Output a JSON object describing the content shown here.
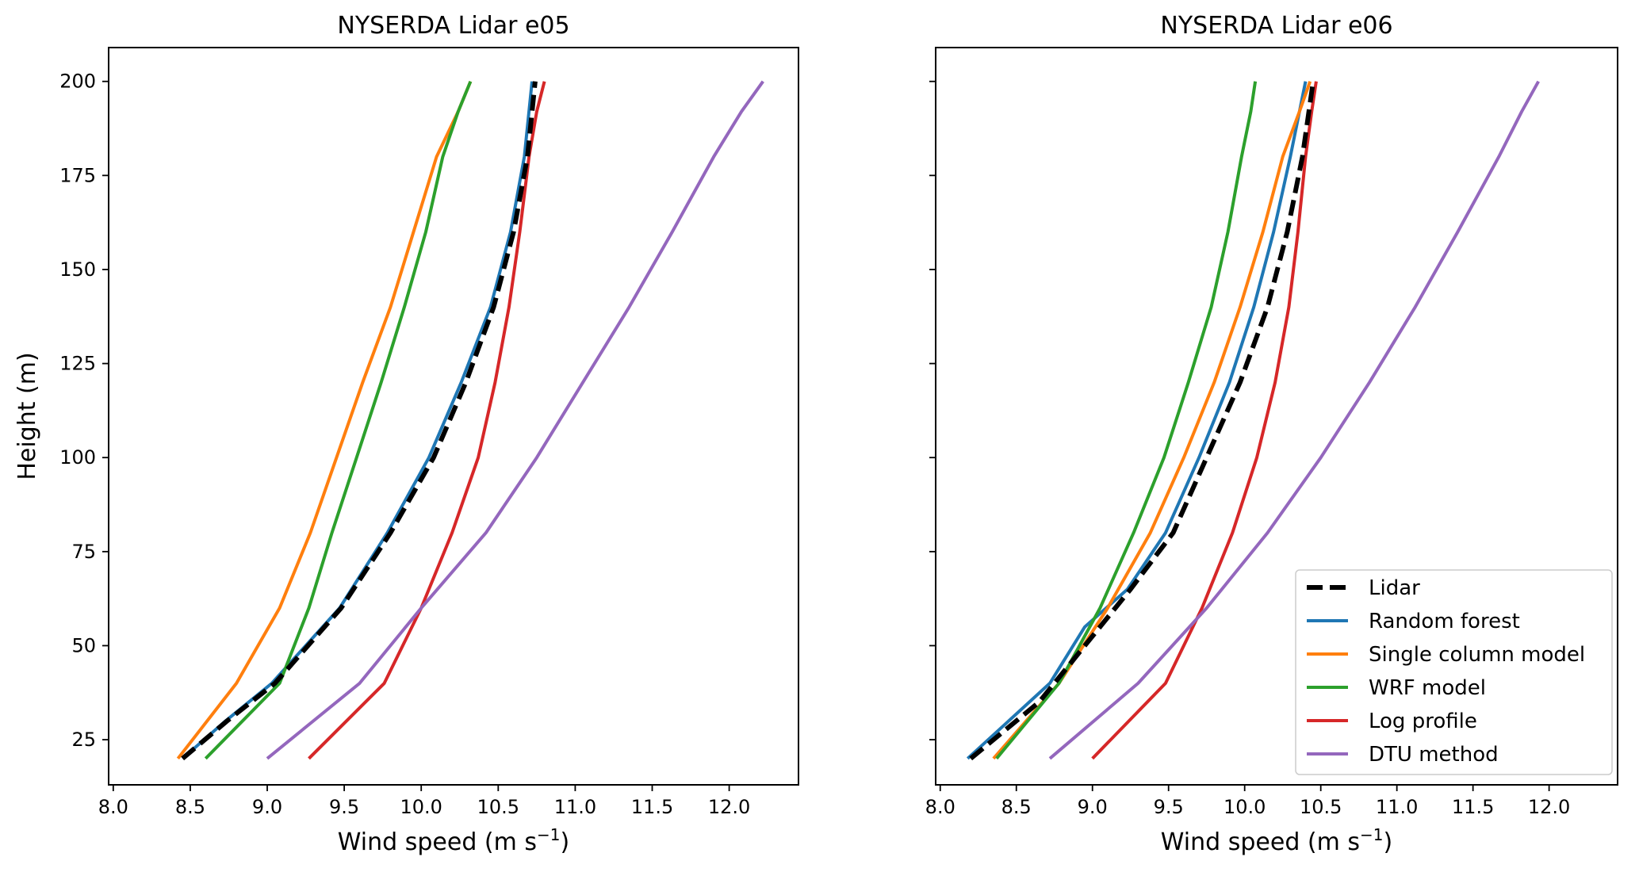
{
  "chart_data": [
    {
      "type": "line",
      "title": "NYSERDA Lidar e05",
      "xlabel": "Wind speed (m s",
      "xlabel_sup": "−1",
      "xlabel_close": ")",
      "ylabel": "Height (m)",
      "xlim": [
        7.97,
        12.45
      ],
      "ylim": [
        13,
        209
      ],
      "xticks": [
        8.0,
        8.5,
        9.0,
        9.5,
        10.0,
        10.5,
        11.0,
        11.5,
        12.0
      ],
      "xtick_labels": [
        "8.0",
        "8.5",
        "9.0",
        "9.5",
        "10.0",
        "10.5",
        "11.0",
        "11.5",
        "12.0"
      ],
      "yticks": [
        25,
        50,
        75,
        100,
        125,
        150,
        175,
        200
      ],
      "ytick_labels": [
        "25",
        "50",
        "75",
        "100",
        "125",
        "150",
        "175",
        "200"
      ],
      "series": [
        {
          "name": "Random forest",
          "color": "#1f77b4",
          "dash": "solid",
          "x": [
            8.45,
            8.73,
            9.03,
            9.47,
            9.78,
            10.05,
            10.26,
            10.45,
            10.58,
            10.67,
            10.72
          ],
          "y": [
            20,
            30,
            40,
            60,
            80,
            100,
            120,
            140,
            160,
            180,
            200
          ]
        },
        {
          "name": "Single column model",
          "color": "#ff7f0e",
          "dash": "solid",
          "x": [
            8.42,
            8.8,
            9.08,
            9.28,
            9.45,
            9.62,
            9.8,
            9.95,
            10.1,
            10.24,
            10.32
          ],
          "y": [
            20,
            40,
            60,
            80,
            100,
            120,
            140,
            160,
            180,
            192,
            200
          ]
        },
        {
          "name": "WRF model",
          "color": "#2ca02c",
          "dash": "solid",
          "x": [
            8.6,
            9.08,
            9.27,
            9.42,
            9.58,
            9.74,
            9.89,
            10.03,
            10.14,
            10.24,
            10.32
          ],
          "y": [
            20,
            40,
            60,
            80,
            100,
            120,
            140,
            160,
            180,
            192,
            200
          ]
        },
        {
          "name": "Log profile",
          "color": "#d62728",
          "dash": "solid",
          "x": [
            9.27,
            9.76,
            10.0,
            10.2,
            10.37,
            10.48,
            10.57,
            10.64,
            10.7,
            10.75,
            10.8
          ],
          "y": [
            20,
            40,
            60,
            80,
            100,
            120,
            140,
            160,
            180,
            192,
            200
          ]
        },
        {
          "name": "DTU method",
          "color": "#9467bd",
          "dash": "solid",
          "x": [
            9.0,
            9.6,
            10.0,
            10.42,
            10.75,
            11.05,
            11.35,
            11.63,
            11.9,
            12.08,
            12.22
          ],
          "y": [
            20,
            40,
            60,
            80,
            100,
            120,
            140,
            160,
            180,
            192,
            200
          ]
        },
        {
          "name": "Lidar",
          "color": "#000000",
          "dash": "dashed",
          "x": [
            8.45,
            8.74,
            9.05,
            9.48,
            9.8,
            10.08,
            10.29,
            10.47,
            10.6,
            10.69,
            10.74
          ],
          "y": [
            20,
            30,
            40,
            60,
            80,
            100,
            120,
            140,
            160,
            180,
            200
          ]
        }
      ]
    },
    {
      "type": "line",
      "title": "NYSERDA Lidar e06",
      "xlabel": "Wind speed (m s",
      "xlabel_sup": "−1",
      "xlabel_close": ")",
      "ylabel": "",
      "xlim": [
        7.97,
        12.45
      ],
      "ylim": [
        13,
        209
      ],
      "xticks": [
        8.0,
        8.5,
        9.0,
        9.5,
        10.0,
        10.5,
        11.0,
        11.5,
        12.0
      ],
      "xtick_labels": [
        "8.0",
        "8.5",
        "9.0",
        "9.5",
        "10.0",
        "10.5",
        "11.0",
        "11.5",
        "12.0"
      ],
      "yticks": [
        25,
        50,
        75,
        100,
        125,
        150,
        175,
        200
      ],
      "ytick_labels": [
        "",
        "",
        "",
        "",
        "",
        "",
        "",
        ""
      ],
      "series": [
        {
          "name": "Random forest",
          "color": "#1f77b4",
          "dash": "solid",
          "x": [
            8.18,
            8.72,
            8.95,
            9.23,
            9.48,
            9.7,
            9.9,
            10.06,
            10.19,
            10.3,
            10.4
          ],
          "y": [
            20,
            40,
            55,
            65,
            80,
            100,
            120,
            140,
            160,
            180,
            200
          ]
        },
        {
          "name": "Single column model",
          "color": "#ff7f0e",
          "dash": "solid",
          "x": [
            8.35,
            8.78,
            9.1,
            9.38,
            9.6,
            9.8,
            9.97,
            10.12,
            10.25,
            10.36,
            10.43
          ],
          "y": [
            20,
            40,
            60,
            80,
            100,
            120,
            140,
            160,
            180,
            192,
            200
          ]
        },
        {
          "name": "WRF model",
          "color": "#2ca02c",
          "dash": "solid",
          "x": [
            8.37,
            8.78,
            9.05,
            9.27,
            9.47,
            9.63,
            9.78,
            9.89,
            9.98,
            10.04,
            10.07
          ],
          "y": [
            20,
            40,
            60,
            80,
            100,
            120,
            140,
            160,
            180,
            192,
            200
          ]
        },
        {
          "name": "Log profile",
          "color": "#d62728",
          "dash": "solid",
          "x": [
            9.0,
            9.48,
            9.72,
            9.92,
            10.08,
            10.2,
            10.29,
            10.35,
            10.4,
            10.44,
            10.47
          ],
          "y": [
            20,
            40,
            60,
            80,
            100,
            120,
            140,
            160,
            180,
            192,
            200
          ]
        },
        {
          "name": "DTU method",
          "color": "#9467bd",
          "dash": "solid",
          "x": [
            8.72,
            9.3,
            9.75,
            10.15,
            10.5,
            10.82,
            11.12,
            11.4,
            11.67,
            11.82,
            11.93
          ],
          "y": [
            20,
            40,
            60,
            80,
            100,
            120,
            140,
            160,
            180,
            192,
            200
          ]
        },
        {
          "name": "Lidar",
          "color": "#000000",
          "dash": "dashed",
          "x": [
            8.2,
            8.65,
            8.95,
            9.25,
            9.53,
            9.75,
            9.97,
            10.15,
            10.28,
            10.38,
            10.45
          ],
          "y": [
            20,
            35,
            50,
            65,
            80,
            100,
            120,
            140,
            160,
            180,
            200
          ]
        }
      ]
    }
  ],
  "legend": {
    "placement": "lower-right",
    "entries": [
      {
        "label": "Lidar",
        "color": "#000000",
        "dash": "dashed"
      },
      {
        "label": "Random forest",
        "color": "#1f77b4",
        "dash": "solid"
      },
      {
        "label": "Single column model",
        "color": "#ff7f0e",
        "dash": "solid"
      },
      {
        "label": "WRF model",
        "color": "#2ca02c",
        "dash": "solid"
      },
      {
        "label": "Log profile",
        "color": "#d62728",
        "dash": "solid"
      },
      {
        "label": "DTU method",
        "color": "#9467bd",
        "dash": "solid"
      }
    ]
  }
}
